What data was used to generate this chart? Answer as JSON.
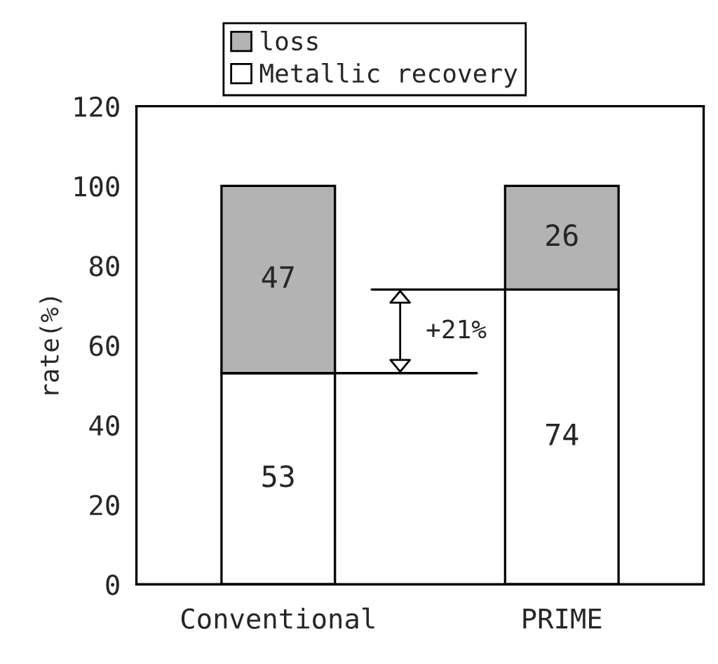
{
  "chart_data": {
    "type": "bar",
    "stacked": true,
    "ylabel": "rate(%)",
    "categories": [
      "Conventional",
      "PRIME"
    ],
    "series": [
      {
        "name": "Metallic recovery",
        "color": "#ffffff",
        "values": [
          53,
          74
        ]
      },
      {
        "name": "loss",
        "color": "#b3b3b3",
        "values": [
          47,
          26
        ]
      }
    ],
    "ylim": [
      0,
      120
    ],
    "yticks": [
      0,
      20,
      40,
      60,
      80,
      100,
      120
    ],
    "data_labels": true,
    "legend": "top",
    "grid": false,
    "annotations": [
      "+21%"
    ]
  }
}
